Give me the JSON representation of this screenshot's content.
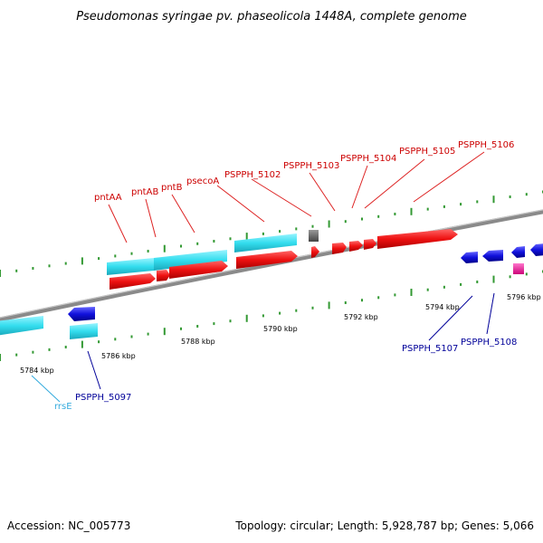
{
  "title": "Pseudomonas syringae pv. phaseolicola 1448A, complete genome",
  "footer": {
    "accession": "Accession: NC_005773",
    "topology": "Topology: circular; Length: 5,928,787 bp; Genes: 5,066"
  },
  "scale_labels": [
    "5784 kbp",
    "5786 kbp",
    "5788 kbp",
    "5790 kbp",
    "5792 kbp",
    "5794 kbp",
    "5796 kbp"
  ],
  "forward_gene_labels": [
    "pntAA",
    "pntAB",
    "pntB",
    "psecoA",
    "PSPPH_5102",
    "PSPPH_5103",
    "PSPPH_5104",
    "PSPPH_5105",
    "PSPPH_5106"
  ],
  "reverse_gene_labels": [
    "PSPPH_5097",
    "PSPPH_5107",
    "PSPPH_5108"
  ],
  "rna_gene_labels": [
    "rrsE"
  ],
  "colors": {
    "forward_cds": "#ee1111",
    "reverse_cds": "#1111dd",
    "gene_bar": "#33ddee",
    "rna": "#ee1199",
    "tick": "#339933",
    "backbone": "#808080",
    "red_label": "#cc0000",
    "blue_label": "#000099",
    "cyan_label": "#33aadd"
  }
}
